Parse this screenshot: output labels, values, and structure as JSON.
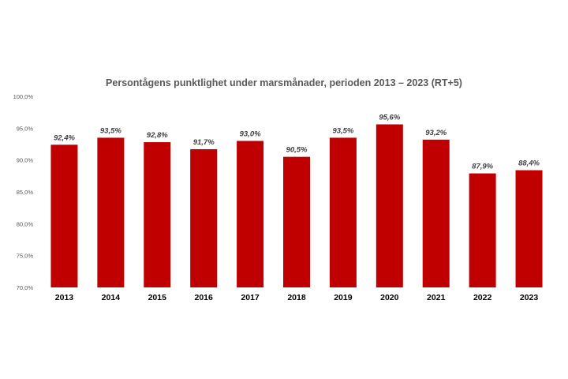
{
  "chart_data": {
    "type": "bar",
    "title": "Persontågens punktlighet under marsmånader, perioden 2013 – 2023 (RT+5)",
    "xlabel": "",
    "ylabel": "",
    "categories": [
      "2013",
      "2014",
      "2015",
      "2016",
      "2017",
      "2018",
      "2019",
      "2020",
      "2021",
      "2022",
      "2023"
    ],
    "values": [
      92.4,
      93.5,
      92.8,
      91.7,
      93.0,
      90.5,
      93.5,
      95.6,
      93.2,
      87.9,
      88.4
    ],
    "data_labels": [
      "92,4%",
      "93,5%",
      "92,8%",
      "91,7%",
      "93,0%",
      "90,5%",
      "93,5%",
      "95,6%",
      "93,2%",
      "87,9%",
      "88,4%"
    ],
    "ylim": [
      70,
      100
    ],
    "yticks": [
      70,
      75,
      80,
      85,
      90,
      95,
      100
    ],
    "ytick_labels": [
      "70,0%",
      "75,0%",
      "80,0%",
      "85,0%",
      "90,0%",
      "95,0%",
      "100,0%"
    ],
    "grid": false,
    "legend": "none",
    "bar_color": "#C00000"
  }
}
